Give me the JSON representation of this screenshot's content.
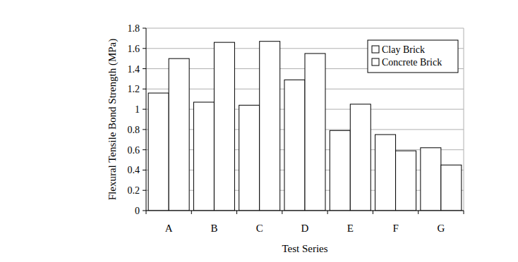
{
  "chart_data": {
    "type": "bar",
    "x_label": "Test Series",
    "y_label": "Flexural Tensile Bond Strength (MPa)",
    "categories": [
      "A",
      "B",
      "C",
      "D",
      "E",
      "F",
      "G"
    ],
    "series": [
      {
        "name": "Clay Brick",
        "color": "#ffffff",
        "values": [
          1.16,
          1.07,
          1.04,
          1.29,
          0.79,
          0.75,
          0.62
        ]
      },
      {
        "name": "Concrete Brick",
        "color": "#ffffff",
        "values": [
          1.5,
          1.66,
          1.67,
          1.55,
          1.05,
          0.59,
          0.45
        ]
      }
    ],
    "ylim": [
      0,
      1.8
    ],
    "yticks": [
      0,
      0.2,
      0.4,
      0.6,
      0.8,
      1,
      1.2,
      1.4,
      1.6,
      1.8
    ],
    "grid": true,
    "legend": "upper right"
  }
}
